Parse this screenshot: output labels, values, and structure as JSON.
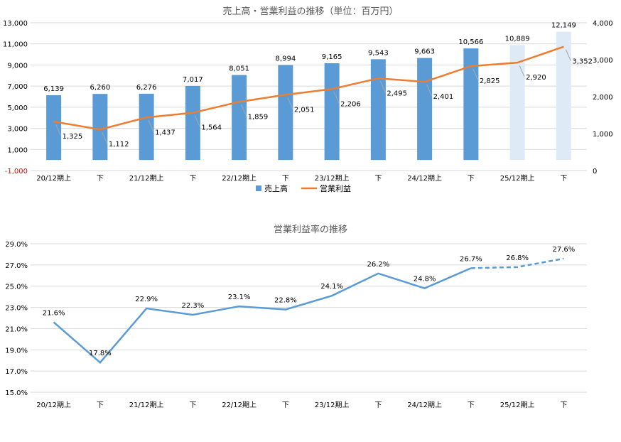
{
  "chart_data": [
    {
      "type": "bar",
      "title": "売上高・営業利益の推移（単位：百万円）",
      "categories": [
        "20/12期上",
        "下",
        "21/12期上",
        "下",
        "22/12期上",
        "下",
        "23/12期上",
        "下",
        "24/12期上",
        "下",
        "25/12期上",
        "下"
      ],
      "y_left_ticks": [
        "13,000",
        "11,000",
        "9,000",
        "7,000",
        "5,000",
        "3,000",
        "1,000",
        "-1,000"
      ],
      "y_right_ticks": [
        "4,000",
        "3,000",
        "2,000",
        "1,000",
        "0"
      ],
      "ylim_left": [
        -1000,
        13000
      ],
      "ylim_right": [
        0,
        4000
      ],
      "grid": true,
      "legend_position": "bottom",
      "series": [
        {
          "name": "売上高",
          "type": "bar",
          "axis": "left",
          "color": "#5b9bd5",
          "forecast_color": "#deebf7",
          "forecast_from_index": 10,
          "values": [
            6139,
            6260,
            6276,
            7017,
            8051,
            8994,
            9165,
            9543,
            9663,
            10566,
            10889,
            12149
          ],
          "labels": [
            "6,139",
            "6,260",
            "6,276",
            "7,017",
            "8,051",
            "8,994",
            "9,165",
            "9,543",
            "9,663",
            "10,566",
            "10,889",
            "12,149"
          ]
        },
        {
          "name": "営業利益",
          "type": "line",
          "axis": "right",
          "color": "#ed7d31",
          "values": [
            1325,
            1112,
            1437,
            1564,
            1859,
            2051,
            2206,
            2495,
            2401,
            2825,
            2920,
            3352
          ],
          "labels": [
            "1,325",
            "1,112",
            "1,437",
            "1,564",
            "1,859",
            "2,051",
            "2,206",
            "2,495",
            "2,401",
            "2,825",
            "2,920",
            "3,352"
          ]
        }
      ]
    },
    {
      "type": "line",
      "title": "営業利益率の推移",
      "categories": [
        "20/12期上",
        "下",
        "21/12期上",
        "下",
        "22/12期上",
        "下",
        "23/12期上",
        "下",
        "24/12期上",
        "下",
        "25/12期上",
        "下"
      ],
      "y_ticks": [
        "29.0%",
        "27.0%",
        "25.0%",
        "23.0%",
        "21.0%",
        "19.0%",
        "17.0%",
        "15.0%"
      ],
      "ylim": [
        15,
        29
      ],
      "grid": true,
      "series": [
        {
          "type": "line",
          "color": "#5b9bd5",
          "dashed_from_index": 9,
          "values": [
            21.6,
            17.8,
            22.9,
            22.3,
            23.1,
            22.8,
            24.1,
            26.2,
            24.8,
            26.7,
            26.8,
            27.6
          ],
          "labels": [
            "21.6%",
            "17.8%",
            "22.9%",
            "22.3%",
            "23.1%",
            "22.8%",
            "24.1%",
            "26.2%",
            "24.8%",
            "26.7%",
            "26.8%",
            "27.6%"
          ]
        }
      ]
    }
  ]
}
